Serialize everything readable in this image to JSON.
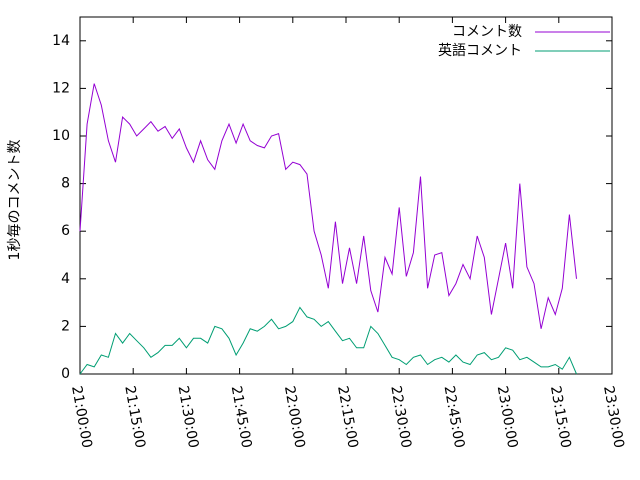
{
  "chart_data": {
    "type": "line",
    "y_label": "1秒毎のコメント数",
    "xlim": [
      "21:00:00",
      "23:30:00"
    ],
    "xticks": [
      "21:00:00",
      "21:15:00",
      "21:30:00",
      "21:45:00",
      "22:00:00",
      "22:15:00",
      "22:30:00",
      "22:45:00",
      "23:00:00",
      "23:15:00",
      "23:30:00"
    ],
    "ylim": [
      0,
      15
    ],
    "yticks": [
      0,
      2,
      4,
      6,
      8,
      10,
      12,
      14
    ],
    "legend": "top-right",
    "x": [
      "21:00:00",
      "21:02:00",
      "21:04:00",
      "21:06:00",
      "21:08:00",
      "21:10:00",
      "21:12:00",
      "21:14:00",
      "21:16:00",
      "21:18:00",
      "21:20:00",
      "21:22:00",
      "21:24:00",
      "21:26:00",
      "21:28:00",
      "21:30:00",
      "21:32:00",
      "21:34:00",
      "21:36:00",
      "21:38:00",
      "21:40:00",
      "21:42:00",
      "21:44:00",
      "21:46:00",
      "21:48:00",
      "21:50:00",
      "21:52:00",
      "21:54:00",
      "21:56:00",
      "21:58:00",
      "22:00:00",
      "22:02:00",
      "22:04:00",
      "22:06:00",
      "22:08:00",
      "22:10:00",
      "22:12:00",
      "22:14:00",
      "22:16:00",
      "22:18:00",
      "22:20:00",
      "22:22:00",
      "22:24:00",
      "22:26:00",
      "22:28:00",
      "22:30:00",
      "22:32:00",
      "22:34:00",
      "22:36:00",
      "22:38:00",
      "22:40:00",
      "22:42:00",
      "22:44:00",
      "22:46:00",
      "22:48:00",
      "22:50:00",
      "22:52:00",
      "22:54:00",
      "22:56:00",
      "22:58:00",
      "23:00:00",
      "23:02:00",
      "23:04:00",
      "23:06:00",
      "23:08:00",
      "23:10:00",
      "23:12:00",
      "23:14:00",
      "23:16:00",
      "23:18:00",
      "23:20:00"
    ],
    "series": [
      {
        "name": "コメント数",
        "color": "#9400d3",
        "values": [
          6.0,
          10.5,
          12.2,
          11.3,
          9.8,
          8.9,
          10.8,
          10.5,
          10.0,
          10.3,
          10.6,
          10.2,
          10.4,
          9.9,
          10.3,
          9.5,
          8.9,
          9.8,
          9.0,
          8.6,
          9.8,
          10.5,
          9.7,
          10.5,
          9.8,
          9.6,
          9.5,
          10.0,
          10.1,
          8.6,
          8.9,
          8.8,
          8.4,
          6.0,
          5.0,
          3.6,
          6.4,
          3.8,
          5.3,
          3.8,
          5.8,
          3.5,
          2.6,
          4.9,
          4.2,
          7.0,
          4.1,
          5.1,
          8.3,
          3.6,
          5.0,
          5.1,
          3.3,
          3.8,
          4.6,
          4.0,
          5.8,
          4.9,
          2.5,
          4.0,
          5.5,
          3.6,
          8.0,
          4.5,
          3.8,
          1.9,
          3.2,
          2.5,
          3.6,
          6.7,
          4.0
        ]
      },
      {
        "name": "英語コメント",
        "color": "#009e73",
        "values": [
          0.0,
          0.4,
          0.3,
          0.8,
          0.7,
          1.7,
          1.3,
          1.7,
          1.4,
          1.1,
          0.7,
          0.9,
          1.2,
          1.2,
          1.5,
          1.1,
          1.5,
          1.5,
          1.3,
          2.0,
          1.9,
          1.5,
          0.8,
          1.3,
          1.9,
          1.8,
          2.0,
          2.3,
          1.9,
          2.0,
          2.2,
          2.8,
          2.4,
          2.3,
          2.0,
          2.2,
          1.8,
          1.4,
          1.5,
          1.1,
          1.1,
          2.0,
          1.7,
          1.2,
          0.7,
          0.6,
          0.4,
          0.7,
          0.8,
          0.4,
          0.6,
          0.7,
          0.5,
          0.8,
          0.5,
          0.4,
          0.8,
          0.9,
          0.6,
          0.7,
          1.1,
          1.0,
          0.6,
          0.7,
          0.5,
          0.3,
          0.3,
          0.4,
          0.2,
          0.7,
          0.0
        ]
      }
    ]
  }
}
